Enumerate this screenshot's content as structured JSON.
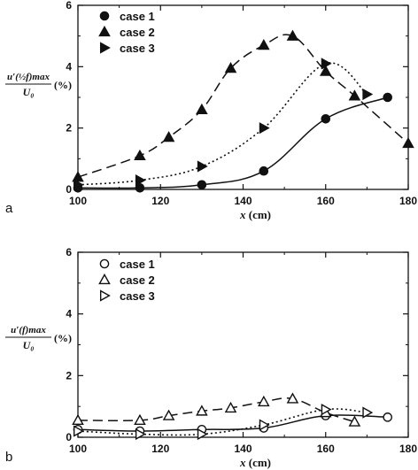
{
  "chart_data": [
    {
      "panel": "a",
      "type": "line",
      "xlabel_italic": "x",
      "xlabel_unit": "(cm)",
      "ylabel_fraction_top": "u′(½f)max",
      "ylabel_fraction_bottom": "U₀",
      "ylabel_unit": "(%)",
      "xlim": [
        100,
        180
      ],
      "ylim": [
        0,
        6
      ],
      "x_ticks": [
        "100",
        "120",
        "140",
        "160",
        "180"
      ],
      "y_ticks": [
        "0",
        "2",
        "4",
        "6"
      ],
      "grid": false,
      "legend_position": "top-left",
      "series": [
        {
          "name": "case 1",
          "marker": "circle",
          "fill": "filled",
          "line": "solid",
          "x": [
            100,
            115,
            130,
            145,
            160,
            175
          ],
          "y": [
            0.05,
            0.05,
            0.15,
            0.6,
            2.3,
            3.0
          ]
        },
        {
          "name": "case 2",
          "marker": "triangle-up",
          "fill": "filled",
          "line": "dashed",
          "x": [
            100,
            115,
            122,
            130,
            137,
            145,
            152,
            160,
            167,
            180
          ],
          "y": [
            0.4,
            1.1,
            1.7,
            2.6,
            3.95,
            4.7,
            5.0,
            3.85,
            3.05,
            1.5
          ]
        },
        {
          "name": "case 3",
          "marker": "triangle-right",
          "fill": "filled",
          "line": "dotted",
          "x": [
            100,
            115,
            130,
            145,
            160,
            170
          ],
          "y": [
            0.15,
            0.3,
            0.75,
            2.0,
            4.1,
            3.1
          ]
        }
      ]
    },
    {
      "panel": "b",
      "type": "line",
      "xlabel_italic": "x",
      "xlabel_unit": "(cm)",
      "ylabel_fraction_top": "u′(f)max",
      "ylabel_fraction_bottom": "U₀",
      "ylabel_unit": "(%)",
      "xlim": [
        100,
        180
      ],
      "ylim": [
        0,
        6
      ],
      "x_ticks": [
        "100",
        "120",
        "140",
        "160",
        "180"
      ],
      "y_ticks": [
        "0",
        "2",
        "4",
        "6"
      ],
      "grid": false,
      "legend_position": "top-left",
      "series": [
        {
          "name": "case 1",
          "marker": "circle",
          "fill": "open",
          "line": "solid",
          "x": [
            100,
            115,
            130,
            145,
            160,
            175
          ],
          "y": [
            0.25,
            0.2,
            0.25,
            0.3,
            0.7,
            0.65
          ]
        },
        {
          "name": "case 2",
          "marker": "triangle-up",
          "fill": "open",
          "line": "dashed",
          "x": [
            100,
            115,
            122,
            130,
            137,
            145,
            152,
            160,
            167
          ],
          "y": [
            0.55,
            0.55,
            0.7,
            0.85,
            0.95,
            1.15,
            1.25,
            0.8,
            0.5
          ]
        },
        {
          "name": "case 3",
          "marker": "triangle-right",
          "fill": "open",
          "line": "dotted",
          "x": [
            100,
            115,
            130,
            145,
            160,
            170
          ],
          "y": [
            0.2,
            0.1,
            0.1,
            0.4,
            0.9,
            0.8
          ]
        }
      ]
    }
  ]
}
